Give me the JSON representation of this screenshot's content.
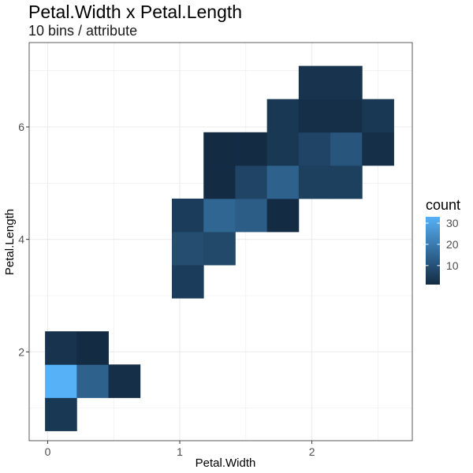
{
  "chart_data": {
    "type": "heatmap",
    "title": "Petal.Width x Petal.Length",
    "subtitle": "10 bins / attribute",
    "xlabel": "Petal.Width",
    "ylabel": "Petal.Length",
    "xlim": [
      -0.14,
      2.76
    ],
    "ylim": [
      0.42,
      7.5
    ],
    "xticks": [
      0,
      1,
      2
    ],
    "yticks": [
      2,
      4,
      6
    ],
    "grid": true,
    "bin_width_x": 0.24,
    "bin_width_y": 0.59,
    "legend": {
      "title": "count",
      "position": "right",
      "range": [
        1,
        33
      ],
      "ticks": [
        10,
        20,
        30
      ],
      "color_low": "#132B43",
      "color_high": "#56B1F7"
    },
    "cells": [
      {
        "x": 0.1,
        "y": 0.89,
        "count": 4
      },
      {
        "x": 0.1,
        "y": 1.48,
        "count": 33
      },
      {
        "x": 0.34,
        "y": 1.48,
        "count": 14
      },
      {
        "x": 0.58,
        "y": 1.48,
        "count": 2
      },
      {
        "x": 0.1,
        "y": 2.07,
        "count": 3
      },
      {
        "x": 0.34,
        "y": 2.07,
        "count": 1
      },
      {
        "x": 1.06,
        "y": 3.25,
        "count": 5
      },
      {
        "x": 1.06,
        "y": 3.84,
        "count": 9
      },
      {
        "x": 1.3,
        "y": 3.84,
        "count": 8
      },
      {
        "x": 1.06,
        "y": 4.43,
        "count": 5
      },
      {
        "x": 1.3,
        "y": 4.43,
        "count": 15
      },
      {
        "x": 1.54,
        "y": 4.43,
        "count": 13
      },
      {
        "x": 1.78,
        "y": 4.43,
        "count": 1
      },
      {
        "x": 1.3,
        "y": 5.02,
        "count": 1
      },
      {
        "x": 1.54,
        "y": 5.02,
        "count": 7
      },
      {
        "x": 1.78,
        "y": 5.02,
        "count": 14
      },
      {
        "x": 2.02,
        "y": 5.02,
        "count": 6
      },
      {
        "x": 2.26,
        "y": 5.02,
        "count": 6
      },
      {
        "x": 1.3,
        "y": 5.61,
        "count": 1
      },
      {
        "x": 1.54,
        "y": 5.61,
        "count": 1
      },
      {
        "x": 1.78,
        "y": 5.61,
        "count": 4
      },
      {
        "x": 2.02,
        "y": 5.61,
        "count": 7
      },
      {
        "x": 2.26,
        "y": 5.61,
        "count": 11
      },
      {
        "x": 2.5,
        "y": 5.61,
        "count": 2
      },
      {
        "x": 1.78,
        "y": 6.2,
        "count": 4
      },
      {
        "x": 2.02,
        "y": 6.2,
        "count": 2
      },
      {
        "x": 2.26,
        "y": 6.2,
        "count": 2
      },
      {
        "x": 2.5,
        "y": 6.2,
        "count": 4
      },
      {
        "x": 2.02,
        "y": 6.79,
        "count": 3
      },
      {
        "x": 2.26,
        "y": 6.79,
        "count": 3
      }
    ]
  }
}
